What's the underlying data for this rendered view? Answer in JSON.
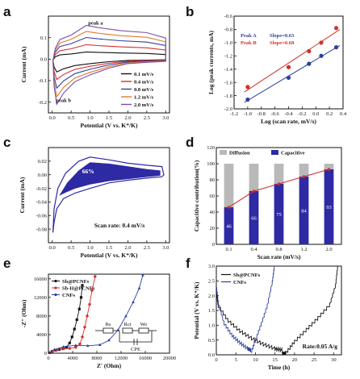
{
  "chart_data": [
    {
      "panel": "a",
      "type": "line",
      "xlabel": "Potential (V vs. K⁺/K)",
      "ylabel": "Current (mA)",
      "xlim": [
        -0.1,
        3.1
      ],
      "ylim": [
        -0.25,
        0.2
      ],
      "xticks": [
        0.0,
        0.5,
        1.0,
        1.5,
        2.0,
        2.5,
        3.0
      ],
      "yticks": [
        -0.2,
        -0.1,
        0.0,
        0.1
      ],
      "legend_position": "lower-right",
      "annotations": [
        {
          "text": "peak a",
          "x": 0.95,
          "y": 0.16
        },
        {
          "text": "peak b",
          "x": 0.1,
          "y": -0.2
        }
      ],
      "series": [
        {
          "name": "0.1 mV/s",
          "color": "#111111",
          "top_y": 0.03,
          "bottom_y": -0.06
        },
        {
          "name": "0.4 mV/s",
          "color": "#d62e2e",
          "top_y": 0.06,
          "bottom_y": -0.095
        },
        {
          "name": "0.8 mV/s",
          "color": "#2f3f9e",
          "top_y": 0.09,
          "bottom_y": -0.135
        },
        {
          "name": "1.2 mV/s",
          "color": "#e07b2a",
          "top_y": 0.115,
          "bottom_y": -0.175
        },
        {
          "name": "2.0 mV/s",
          "color": "#7b4fa8",
          "top_y": 0.14,
          "bottom_y": -0.21
        }
      ]
    },
    {
      "panel": "b",
      "type": "scatter",
      "xlabel": "Log (scan rate, mV/s)",
      "ylabel": "Log (peak currents, mA)",
      "xlim": [
        -1.2,
        0.4
      ],
      "ylim": [
        -2.0,
        -0.6
      ],
      "xticks": [
        -1.2,
        -1.0,
        -0.8,
        -0.6,
        -0.4,
        -0.2,
        0.0,
        0.2,
        0.4
      ],
      "yticks": [
        -2.0,
        -1.8,
        -1.6,
        -1.4,
        -1.2,
        -1.0,
        -0.8,
        -0.6
      ],
      "legend_position": "top-left",
      "series": [
        {
          "name": "Peak A",
          "slope_label": "Slope=0.63",
          "color": "#2f3f9e",
          "x": [
            -1.0,
            -0.4,
            -0.1,
            0.08,
            0.3
          ],
          "y": [
            -1.86,
            -1.53,
            -1.32,
            -1.2,
            -1.07
          ]
        },
        {
          "name": "Peak B",
          "slope_label": "Slope=0.68",
          "color": "#d62e2e",
          "x": [
            -1.0,
            -0.4,
            -0.1,
            0.08,
            0.3
          ],
          "y": [
            -1.67,
            -1.37,
            -1.13,
            -1.0,
            -0.78
          ]
        }
      ]
    },
    {
      "panel": "c",
      "type": "area",
      "xlabel": "Potential (V vs. K⁺/K)",
      "ylabel": "Current (mA)",
      "xlim": [
        -0.1,
        3.1
      ],
      "ylim": [
        -0.1,
        0.04
      ],
      "xticks": [
        0.0,
        0.5,
        1.0,
        1.5,
        2.0,
        2.5,
        3.0
      ],
      "yticks": [
        -0.08,
        -0.06,
        -0.04,
        -0.02,
        0.0,
        0.02
      ],
      "fill_color": "#2e2aa3",
      "fill_label": "66%",
      "annotation": "Scan rate: 0.4 mV/s"
    },
    {
      "panel": "d",
      "type": "bar",
      "xlabel": "Scan rate (mV/s)",
      "ylabel": "Capacitive contribution(%)",
      "ylim": [
        0,
        120
      ],
      "yticks": [
        0,
        20,
        40,
        60,
        80,
        100,
        120
      ],
      "categories": [
        "0.1",
        "0.4",
        "0.8",
        "1.2",
        "2.0"
      ],
      "legend_position": "top",
      "series": [
        {
          "name": "Diffusion",
          "color": "#b9b9b9",
          "values": [
            54,
            34,
            25,
            16,
            7
          ]
        },
        {
          "name": "Capacitive",
          "color": "#2e2aa3",
          "values": [
            46,
            66,
            75,
            84,
            93
          ]
        }
      ],
      "labels": [
        "46",
        "66",
        "75",
        "84",
        "93"
      ]
    },
    {
      "panel": "e",
      "type": "scatter",
      "xlabel": "Z' (Ohm)",
      "ylabel": "-Z\" (Ohm)",
      "xlim": [
        0,
        20000
      ],
      "ylim": [
        0,
        17000
      ],
      "xticks": [
        0,
        4000,
        8000,
        12000,
        16000,
        20000
      ],
      "yticks": [
        0,
        4000,
        8000,
        12000,
        16000
      ],
      "legend_position": "top-left",
      "inset_labels": [
        "Rs",
        "Rct",
        "Wo",
        "CPE"
      ],
      "series": [
        {
          "name": "Sb@PCNFs",
          "color": "#111111",
          "x": [
            150,
            600,
            1200,
            1800,
            2400,
            3000,
            3500,
            3900,
            4300,
            4700,
            5100,
            5400,
            5600
          ],
          "y": [
            100,
            400,
            650,
            800,
            950,
            1300,
            2200,
            3500,
            5200,
            7200,
            9500,
            12000,
            14600
          ]
        },
        {
          "name": "Sb-H@PCNFs",
          "color": "#d62e2e",
          "x": [
            150,
            700,
            1500,
            2500,
            3500,
            4500,
            5200,
            5600,
            6000,
            6400,
            6800,
            7200,
            7700
          ],
          "y": [
            100,
            450,
            750,
            950,
            1050,
            1250,
            2000,
            3500,
            5600,
            8000,
            10500,
            13500,
            16500
          ]
        },
        {
          "name": "CNFs",
          "color": "#2f3f9e",
          "x": [
            150,
            1000,
            2500,
            4500,
            6500,
            8500,
            10000,
            11500,
            12800,
            14000,
            15000,
            15600
          ],
          "y": [
            100,
            800,
            1400,
            1700,
            1600,
            1800,
            2800,
            5000,
            8000,
            11000,
            14000,
            16800
          ]
        }
      ]
    },
    {
      "panel": "f",
      "type": "line",
      "xlabel": "Time (h)",
      "ylabel": "Potential (V vs. K⁺/K)",
      "xlim": [
        0,
        32
      ],
      "ylim": [
        0.0,
        3.0
      ],
      "xticks": [
        0,
        5,
        10,
        15,
        20,
        25,
        30
      ],
      "yticks": [
        0.0,
        0.5,
        1.0,
        1.5,
        2.0,
        2.5,
        3.0
      ],
      "legend_position": "top-left",
      "annotation": "Rate:0.05 A/g",
      "series": [
        {
          "name": "Sb@PCNFs",
          "color": "#111111",
          "x": [
            0,
            0.5,
            3,
            6,
            9,
            12,
            15,
            16.8,
            17.8,
            20,
            23,
            26,
            29,
            30.5,
            31
          ],
          "y": [
            2.05,
            1.6,
            1.1,
            0.75,
            0.5,
            0.3,
            0.15,
            0.1,
            0.12,
            0.5,
            0.9,
            1.3,
            1.75,
            2.4,
            3.0
          ]
        },
        {
          "name": "CNFs",
          "color": "#2f3f9e",
          "x": [
            0,
            0.5,
            2,
            4,
            6,
            8,
            8.8,
            10,
            11.5,
            13,
            14.3,
            14.8
          ],
          "y": [
            2.3,
            1.7,
            1.0,
            0.6,
            0.35,
            0.15,
            0.1,
            0.55,
            1.1,
            1.7,
            2.5,
            3.0
          ]
        }
      ]
    }
  ],
  "panel_letters": {
    "a": "a",
    "b": "b",
    "c": "c",
    "d": "d",
    "e": "e",
    "f": "f"
  }
}
